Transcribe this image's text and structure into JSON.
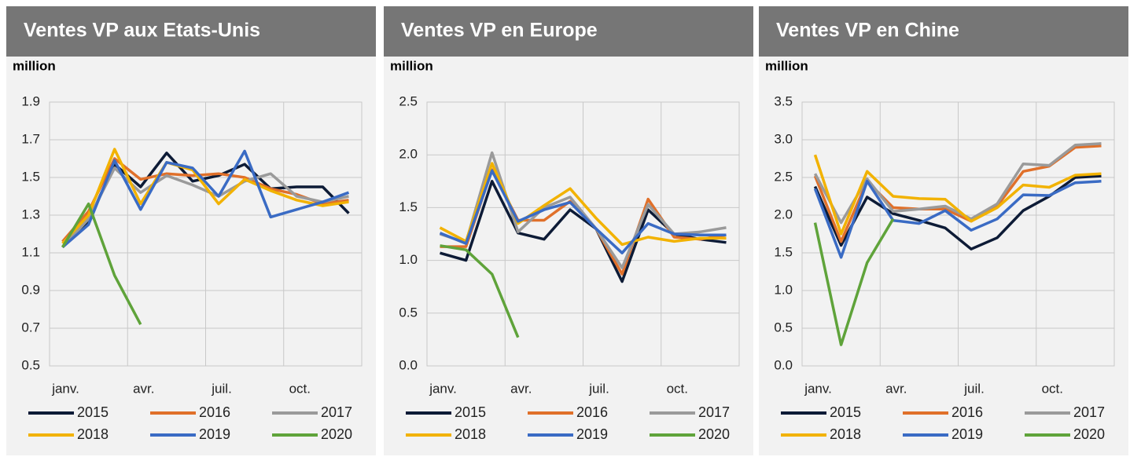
{
  "chart_data": [
    {
      "type": "line",
      "title": "Ventes VP  aux Etats-Unis",
      "y_label": "million",
      "categories": [
        "janv.",
        null,
        null,
        "avr.",
        null,
        null,
        "juil.",
        null,
        null,
        "oct.",
        null,
        null
      ],
      "ylim": [
        0.5,
        1.9
      ],
      "yticks": [
        0.5,
        0.7,
        0.9,
        1.1,
        1.3,
        1.5,
        1.7,
        1.9
      ],
      "grid": true,
      "series": [
        {
          "name": "2015",
          "color": "#0d1b36",
          "values": [
            1.13,
            1.27,
            1.57,
            1.45,
            1.63,
            1.48,
            1.51,
            1.57,
            1.44,
            1.45,
            1.45,
            1.31
          ]
        },
        {
          "name": "2016",
          "color": "#e0702a",
          "values": [
            1.16,
            1.32,
            1.6,
            1.49,
            1.52,
            1.51,
            1.52,
            1.5,
            1.44,
            1.41,
            1.36,
            1.38
          ]
        },
        {
          "name": "2017",
          "color": "#9a9a9a",
          "values": [
            1.13,
            1.28,
            1.55,
            1.42,
            1.51,
            1.46,
            1.4,
            1.48,
            1.52,
            1.4,
            1.37,
            1.4
          ]
        },
        {
          "name": "2018",
          "color": "#f2b200",
          "values": [
            1.15,
            1.3,
            1.65,
            1.36,
            1.58,
            1.54,
            1.36,
            1.49,
            1.43,
            1.38,
            1.35,
            1.37
          ]
        },
        {
          "name": "2019",
          "color": "#3a6bc4",
          "values": [
            1.13,
            1.25,
            1.59,
            1.33,
            1.58,
            1.55,
            1.4,
            1.64,
            1.29,
            1.33,
            1.37,
            1.42
          ]
        },
        {
          "name": "2020",
          "color": "#5fa33a",
          "values": [
            1.13,
            1.36,
            0.98,
            0.72,
            null,
            null,
            null,
            null,
            null,
            null,
            null,
            null
          ]
        }
      ]
    },
    {
      "type": "line",
      "title": "Ventes VP  en Europe",
      "y_label": "million",
      "categories": [
        "janv.",
        null,
        null,
        "avr.",
        null,
        null,
        "juil.",
        null,
        null,
        "oct.",
        null,
        null
      ],
      "ylim": [
        0,
        2.5
      ],
      "yticks": [
        {
          "value": 0,
          "label": "0.0"
        },
        0.5,
        {
          "value": 1,
          "label": "1.0"
        },
        1.5,
        {
          "value": 2,
          "label": "2.0"
        },
        2.5
      ],
      "grid": true,
      "series": [
        {
          "name": "2015",
          "color": "#0d1b36",
          "values": [
            1.07,
            1.0,
            1.75,
            1.26,
            1.2,
            1.48,
            1.3,
            0.8,
            1.48,
            1.25,
            1.2,
            1.17
          ]
        },
        {
          "name": "2016",
          "color": "#e0702a",
          "values": [
            1.13,
            1.13,
            1.86,
            1.38,
            1.38,
            1.56,
            1.3,
            0.87,
            1.58,
            1.22,
            1.2,
            1.24
          ]
        },
        {
          "name": "2017",
          "color": "#9a9a9a",
          "values": [
            1.25,
            1.17,
            2.02,
            1.27,
            1.5,
            1.6,
            1.3,
            0.93,
            1.53,
            1.25,
            1.27,
            1.31
          ]
        },
        {
          "name": "2018",
          "color": "#f2b200",
          "values": [
            1.31,
            1.18,
            1.92,
            1.35,
            1.52,
            1.68,
            1.4,
            1.15,
            1.22,
            1.18,
            1.21,
            1.21
          ]
        },
        {
          "name": "2019",
          "color": "#3a6bc4",
          "values": [
            1.26,
            1.16,
            1.85,
            1.37,
            1.48,
            1.55,
            1.3,
            1.07,
            1.35,
            1.25,
            1.24,
            1.24
          ]
        },
        {
          "name": "2020",
          "color": "#5fa33a",
          "values": [
            1.14,
            1.1,
            0.87,
            0.27,
            null,
            null,
            null,
            null,
            null,
            null,
            null,
            null
          ]
        }
      ]
    },
    {
      "type": "line",
      "title": "Ventes VP  en  Chine",
      "y_label": "million",
      "categories": [
        "janv.",
        null,
        null,
        "avr.",
        null,
        null,
        "juil.",
        null,
        null,
        "oct.",
        null,
        null
      ],
      "ylim": [
        0,
        3.5
      ],
      "yticks": [
        {
          "value": 0,
          "label": "0.0"
        },
        0.5,
        {
          "value": 1,
          "label": "1.0"
        },
        1.5,
        {
          "value": 2,
          "label": "2.0"
        },
        2.5,
        {
          "value": 3,
          "label": "3.0"
        },
        3.5
      ],
      "grid": true,
      "series": [
        {
          "name": "2015",
          "color": "#0d1b36",
          "values": [
            2.38,
            1.6,
            2.24,
            2.02,
            1.93,
            1.83,
            1.55,
            1.7,
            2.06,
            2.25,
            2.5,
            2.52
          ]
        },
        {
          "name": "2016",
          "color": "#e0702a",
          "values": [
            2.52,
            1.65,
            2.45,
            2.1,
            2.08,
            2.08,
            1.92,
            2.12,
            2.58,
            2.65,
            2.9,
            2.92
          ]
        },
        {
          "name": "2017",
          "color": "#9a9a9a",
          "values": [
            2.55,
            1.9,
            2.48,
            2.05,
            2.08,
            2.12,
            1.95,
            2.15,
            2.68,
            2.66,
            2.93,
            2.95
          ]
        },
        {
          "name": "2018",
          "color": "#f2b200",
          "values": [
            2.8,
            1.75,
            2.58,
            2.25,
            2.22,
            2.21,
            1.92,
            2.1,
            2.4,
            2.37,
            2.53,
            2.55
          ]
        },
        {
          "name": "2019",
          "color": "#3a6bc4",
          "values": [
            2.35,
            1.44,
            2.45,
            1.93,
            1.89,
            2.06,
            1.8,
            1.95,
            2.27,
            2.26,
            2.43,
            2.45
          ]
        },
        {
          "name": "2020",
          "color": "#5fa33a",
          "values": [
            1.9,
            0.28,
            1.37,
            1.95,
            null,
            null,
            null,
            null,
            null,
            null,
            null,
            null
          ]
        }
      ]
    }
  ]
}
